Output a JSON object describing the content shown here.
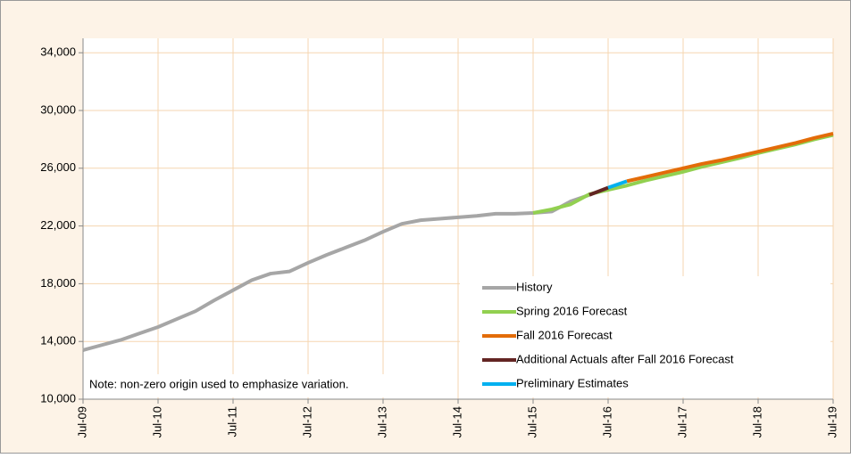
{
  "chart_data": {
    "type": "line",
    "categories": [
      "Jul-09",
      null,
      null,
      null,
      "Jul-10",
      null,
      null,
      null,
      "Jul-11",
      null,
      null,
      null,
      "Jul-12",
      null,
      null,
      null,
      "Jul-13",
      null,
      null,
      null,
      "Jul-14",
      null,
      null,
      null,
      "Jul-15",
      null,
      null,
      null,
      "Jul-16",
      null,
      null,
      null,
      "Jul-17",
      null,
      null,
      null,
      "Jul-18",
      null,
      null,
      null,
      "Jul-19"
    ],
    "series": [
      {
        "name": "History",
        "color": "#a6a6a6",
        "values": [
          13400,
          13750,
          14100,
          14550,
          15000,
          15550,
          16100,
          16850,
          17550,
          18250,
          18700,
          18850,
          19450,
          20000,
          20500,
          21000,
          21600,
          22150,
          22400,
          22500,
          22600,
          22700,
          22850,
          22850,
          22900,
          23000,
          23700,
          24150,
          null,
          null,
          null,
          null,
          null,
          null,
          null,
          null,
          null,
          null,
          null,
          null,
          null
        ]
      },
      {
        "name": "Spring 2016 Forecast",
        "color": "#92d050",
        "values": [
          null,
          null,
          null,
          null,
          null,
          null,
          null,
          null,
          null,
          null,
          null,
          null,
          null,
          null,
          null,
          null,
          null,
          null,
          null,
          null,
          null,
          null,
          null,
          null,
          22900,
          23150,
          23500,
          24200,
          24500,
          24800,
          25150,
          25450,
          25750,
          26100,
          26400,
          26700,
          27050,
          27350,
          27650,
          28000,
          28300
        ]
      },
      {
        "name": "Fall 2016 Forecast",
        "color": "#e36c09",
        "values": [
          null,
          null,
          null,
          null,
          null,
          null,
          null,
          null,
          null,
          null,
          null,
          null,
          null,
          null,
          null,
          null,
          null,
          null,
          null,
          null,
          null,
          null,
          null,
          null,
          null,
          null,
          null,
          null,
          null,
          25100,
          25400,
          25700,
          26000,
          26300,
          26550,
          26850,
          27150,
          27450,
          27750,
          28100,
          28400
        ]
      },
      {
        "name": "Additional Actuals after Fall 2016 Forecast",
        "color": "#632523",
        "values": [
          null,
          null,
          null,
          null,
          null,
          null,
          null,
          null,
          null,
          null,
          null,
          null,
          null,
          null,
          null,
          null,
          null,
          null,
          null,
          null,
          null,
          null,
          null,
          null,
          null,
          null,
          null,
          24150,
          24650,
          null,
          null,
          null,
          null,
          null,
          null,
          null,
          null,
          null,
          null,
          null,
          null
        ]
      },
      {
        "name": "Preliminary Estimates",
        "color": "#00b0f0",
        "values": [
          null,
          null,
          null,
          null,
          null,
          null,
          null,
          null,
          null,
          null,
          null,
          null,
          null,
          null,
          null,
          null,
          null,
          null,
          null,
          null,
          null,
          null,
          null,
          null,
          null,
          null,
          null,
          null,
          24650,
          25100,
          null,
          null,
          null,
          null,
          null,
          null,
          null,
          null,
          null,
          null,
          null
        ]
      }
    ],
    "ylim": [
      10000,
      35000
    ],
    "yticks": [
      {
        "value": 10000,
        "label": "10,000"
      },
      {
        "value": 14000,
        "label": "14,000"
      },
      {
        "value": 18000,
        "label": "18,000"
      },
      {
        "value": 22000,
        "label": "22,000"
      },
      {
        "value": 26000,
        "label": "26,000"
      },
      {
        "value": 30000,
        "label": "30,000"
      },
      {
        "value": 34000,
        "label": "34,000"
      }
    ],
    "grid": true,
    "legend": "bottom-right",
    "annotation": "Note: non-zero origin used to emphasize variation."
  }
}
